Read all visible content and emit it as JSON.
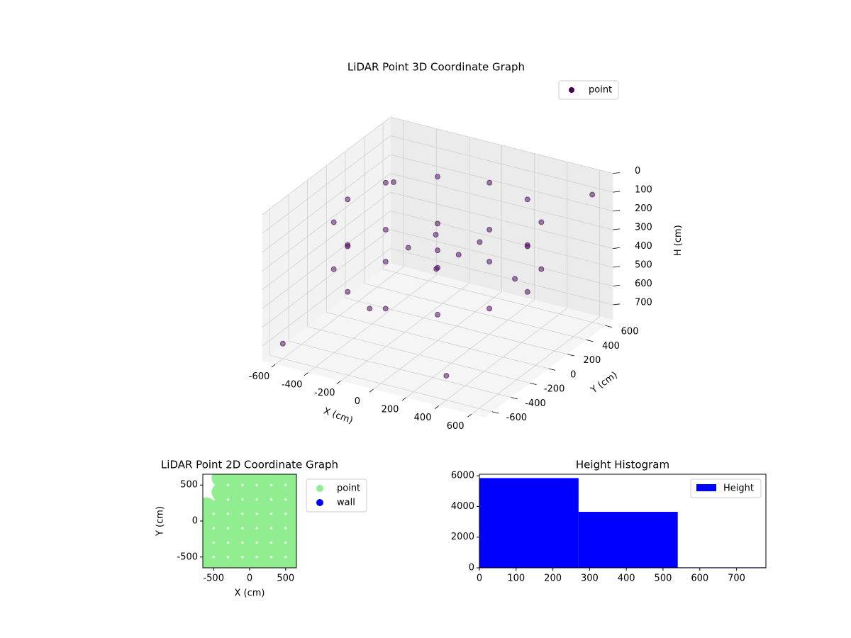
{
  "chart_data": [
    {
      "type": "scatter3d",
      "title": "LiDAR Point 3D Coordinate Graph",
      "xlabel": "X (cm)",
      "ylabel": "Y (cm)",
      "zlabel": "H (cm)",
      "xlim": [
        -680,
        680
      ],
      "ylim": [
        -680,
        680
      ],
      "zlim": [
        0,
        780
      ],
      "zinverted": true,
      "xticks": [
        -600,
        -400,
        -200,
        0,
        200,
        400,
        600
      ],
      "yticks": [
        -600,
        -400,
        -200,
        0,
        200,
        400,
        600
      ],
      "zticks": [
        0,
        100,
        200,
        300,
        400,
        500,
        600,
        700
      ],
      "grid": true,
      "legend": "upper right",
      "series": [
        {
          "name": "point",
          "color": "#440154",
          "x": [
            550,
            476,
            275,
            0,
            -275,
            -476,
            -550,
            -476,
            -275,
            0,
            275,
            476,
            550,
            476,
            275,
            0,
            -275,
            -476,
            -550,
            -476,
            -275,
            0,
            275,
            476,
            0,
            100,
            -80,
            50,
            -150,
            200,
            -600,
            600,
            -500,
            400,
            -300,
            300
          ],
          "y": [
            0,
            275,
            476,
            550,
            476,
            275,
            0,
            -275,
            -476,
            -550,
            -476,
            -275,
            0,
            275,
            476,
            550,
            476,
            275,
            0,
            -275,
            -476,
            -550,
            -476,
            -275,
            0,
            50,
            120,
            -100,
            -50,
            100,
            -600,
            600,
            400,
            -600,
            -200,
            300
          ],
          "z": [
            150,
            150,
            150,
            150,
            150,
            150,
            150,
            150,
            150,
            150,
            150,
            150,
            400,
            400,
            400,
            400,
            400,
            400,
            400,
            400,
            400,
            400,
            400,
            400,
            300,
            320,
            280,
            350,
            300,
            250,
            700,
            100,
            200,
            650,
            600,
            500
          ]
        }
      ]
    },
    {
      "type": "scatter",
      "title": "LiDAR Point 2D Coordinate Graph",
      "xlabel": "X (cm)",
      "ylabel": "Y (cm)",
      "xlim": [
        -650,
        650
      ],
      "ylim": [
        -650,
        650
      ],
      "xticks": [
        -500,
        0,
        500
      ],
      "yticks": [
        -500,
        0,
        500
      ],
      "legend": "outside right",
      "series": [
        {
          "name": "point",
          "color": "#90ee90",
          "x": [
            -400,
            -200,
            0,
            200,
            400,
            600,
            -400,
            -200,
            0,
            200,
            400,
            600,
            -600,
            -400,
            -200,
            0,
            200,
            400,
            600,
            -600,
            -400,
            -200,
            0,
            200,
            400,
            600,
            -600,
            -400,
            -200,
            0,
            200,
            400,
            600,
            -600,
            -400,
            -200,
            0,
            200,
            400,
            600,
            -600,
            -400,
            -200,
            0,
            200,
            400,
            600
          ],
          "y": [
            600,
            600,
            600,
            600,
            600,
            600,
            400,
            400,
            400,
            400,
            400,
            400,
            200,
            200,
            200,
            200,
            200,
            200,
            200,
            0,
            0,
            0,
            0,
            0,
            0,
            0,
            -200,
            -200,
            -200,
            -200,
            -200,
            -200,
            -200,
            -400,
            -400,
            -400,
            -400,
            -400,
            -400,
            -400,
            -600,
            -600,
            -600,
            -600,
            -600,
            -600,
            -600
          ]
        },
        {
          "name": "wall",
          "color": "#0000ff",
          "x": [],
          "y": []
        }
      ]
    },
    {
      "type": "histogram",
      "title": "Height Histogram",
      "bins": [
        0,
        270,
        540,
        780
      ],
      "xlim": [
        0,
        780
      ],
      "ylim": [
        0,
        6100
      ],
      "xticks": [
        0,
        100,
        200,
        300,
        400,
        500,
        600,
        700
      ],
      "yticks": [
        0,
        2000,
        4000,
        6000
      ],
      "legend": "upper right",
      "series": [
        {
          "name": "Height",
          "color": "#0000ff",
          "values": [
            5850,
            3650,
            30
          ]
        }
      ]
    }
  ]
}
